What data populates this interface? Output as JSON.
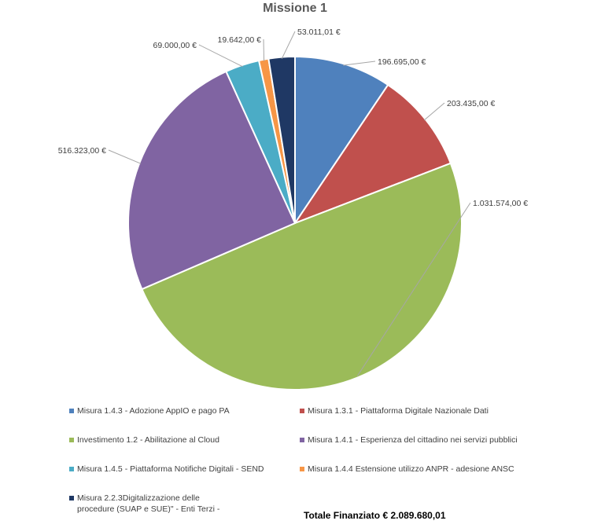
{
  "chart_data": {
    "type": "pie",
    "title": "Missione 1",
    "slices": [
      {
        "name": "Misura 1.4.3 - Adozione AppIO e pago PA",
        "value": 196695.0,
        "label": "196.695,00 €",
        "color": "#4F81BD"
      },
      {
        "name": "Misura 1.3.1 - Piattaforma Digitale Nazionale Dati",
        "value": 203435.0,
        "label": "203.435,00 €",
        "color": "#C0504D"
      },
      {
        "name": "Investimento 1.2 - Abilitazione al Cloud",
        "value": 1031574.0,
        "label": "1.031.574,00 €",
        "color": "#9BBB59"
      },
      {
        "name": "Misura 1.4.1 - Esperienza del cittadino nei servizi pubblici",
        "value": 516323.0,
        "label": "516.323,00 €",
        "color": "#8064A2"
      },
      {
        "name": "Misura 1.4.5 - Piattaforma Notifiche Digitali - SEND",
        "value": 69000.0,
        "label": "69.000,00 €",
        "color": "#4BACC6"
      },
      {
        "name": "Misura 1.4.4 Estensione utilizzo ANPR - adesione ANSC",
        "value": 19642.0,
        "label": "19.642,00 €",
        "color": "#F79646"
      },
      {
        "name": "Misura 2.2.3Digitalizzazione delle procedure (SUAP e SUE)\" - Enti Terzi -",
        "value": 53011.01,
        "label": "53.011,01 €",
        "color": "#1F3864"
      }
    ],
    "legend_position": "bottom"
  },
  "total_text": "Totale Finanziato € 2.089.680,01"
}
